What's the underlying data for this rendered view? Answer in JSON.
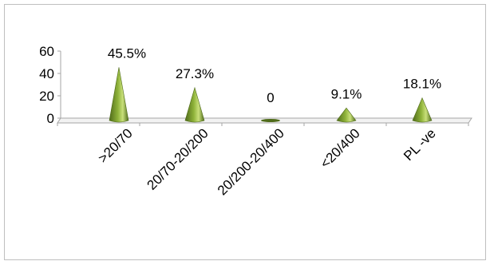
{
  "chart_data": {
    "type": "bar",
    "categories": [
      ">20/70",
      "20/70-20/200",
      "20/200-20/400",
      "<20/400",
      "PL -ve"
    ],
    "values": [
      45.5,
      27.3,
      0,
      9.1,
      18.1
    ],
    "data_labels": [
      "45.5%",
      "27.3%",
      "0",
      "9.1%",
      "18.1%"
    ],
    "y_ticks": [
      "0",
      "20",
      "40",
      "60"
    ],
    "ylim": [
      0,
      60
    ],
    "title": "",
    "xlabel": "",
    "ylabel": "",
    "grid": false,
    "legend": "none",
    "mark_shape": "cone",
    "colors": {
      "cone_dark": "#4f6b1a",
      "cone_mid": "#8fb33a",
      "cone_light": "#c9e07a",
      "axis": "#a6a6a6",
      "text": "#000000",
      "border": "#bfbfbf"
    }
  }
}
